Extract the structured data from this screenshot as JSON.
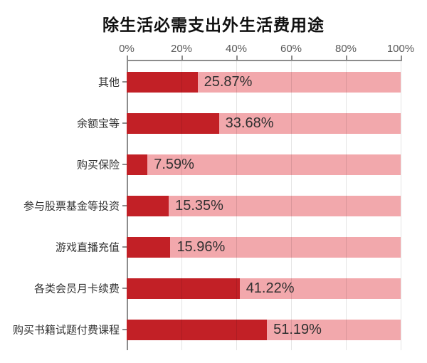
{
  "title": "除生活必需支出外生活费用途",
  "chart_data": {
    "type": "bar",
    "orientation": "horizontal",
    "title": "除生活必需支出外生活费用途",
    "categories": [
      "其他",
      "余额宝等",
      "购买保险",
      "参与股票基金等投资",
      "游戏直播充值",
      "各类会员月卡续费",
      "购买书籍试题付费课程"
    ],
    "values": [
      25.87,
      33.68,
      7.59,
      15.35,
      15.96,
      41.22,
      51.19
    ],
    "value_labels": [
      "25.87%",
      "33.68%",
      "7.59%",
      "15.35%",
      "15.96%",
      "41.22%",
      "51.19%"
    ],
    "xlim": [
      0,
      100
    ],
    "x_tick_labels": [
      "0%",
      "20%",
      "40%",
      "60%",
      "80%",
      "100%"
    ],
    "x_tick_values": [
      0,
      20,
      40,
      60,
      80,
      100
    ],
    "x_axis_position": "top",
    "grid": true,
    "legend": false,
    "colors": {
      "bar_fill": "#C22026",
      "bar_track": "#F2A8AC",
      "axis": "#8c8c8c",
      "tick_label": "#595959",
      "category_label": "#333333",
      "value_label": "#303030",
      "title": "#111111"
    }
  }
}
